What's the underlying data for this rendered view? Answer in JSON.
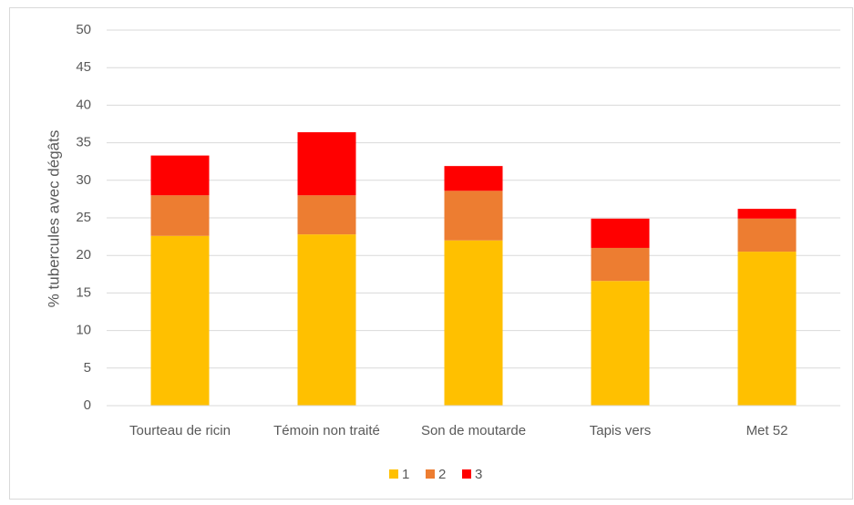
{
  "chart_data": {
    "type": "stacked_bar",
    "y_label": "% tubercules avec dégâts",
    "categories": [
      "Tourteau de ricin",
      "Témoin non traité",
      "Son de moutarde",
      "Tapis vers",
      "Met 52"
    ],
    "series": [
      {
        "name": "1",
        "color": "#FFC000",
        "values": [
          22.6,
          22.8,
          22.0,
          16.6,
          20.5
        ]
      },
      {
        "name": "2",
        "color": "#ED7D31",
        "values": [
          5.4,
          5.2,
          6.6,
          4.4,
          4.4
        ]
      },
      {
        "name": "3",
        "color": "#FF0000",
        "values": [
          5.3,
          8.4,
          3.3,
          3.9,
          1.3
        ]
      }
    ],
    "ylim": [
      0,
      50
    ],
    "yticks": [
      0,
      5,
      10,
      15,
      20,
      25,
      30,
      35,
      40,
      45,
      50
    ],
    "grid": true,
    "legend": "bottom"
  }
}
